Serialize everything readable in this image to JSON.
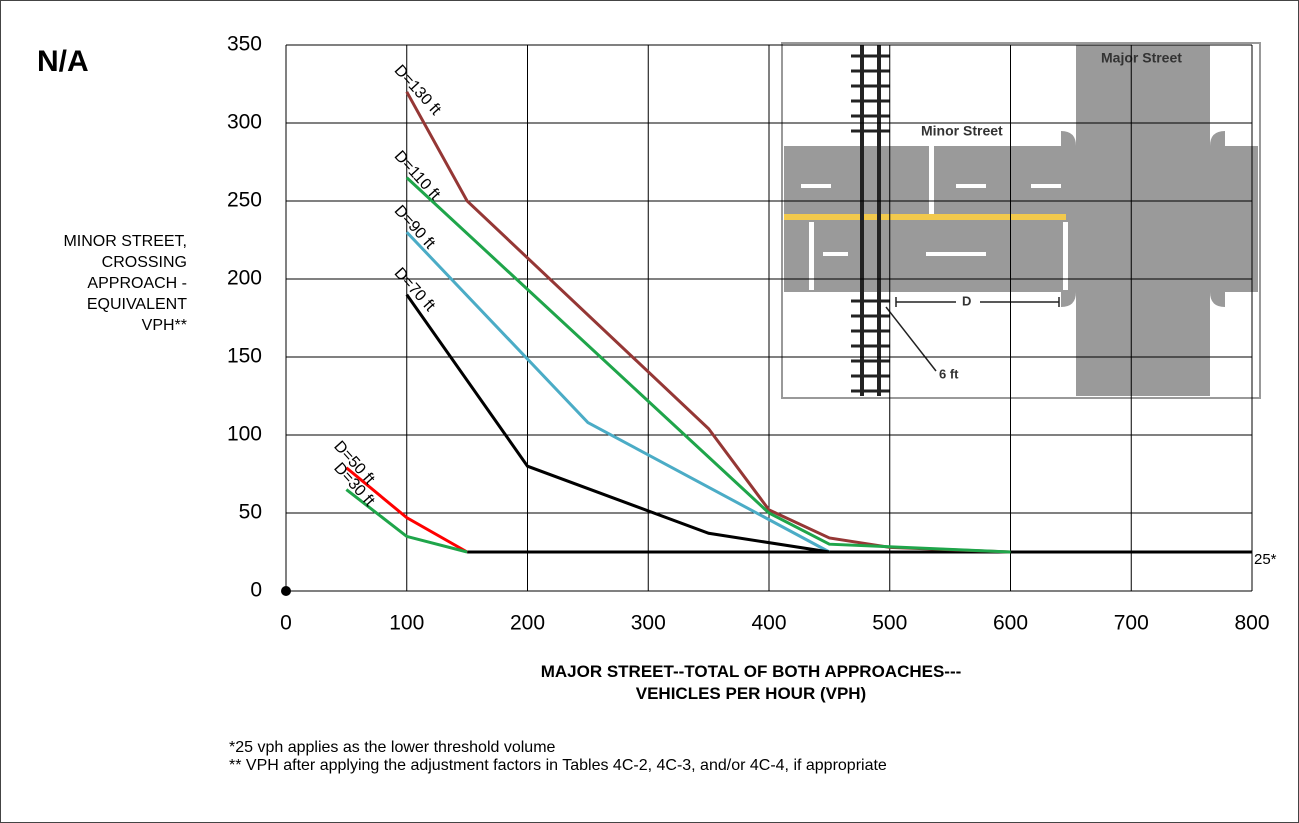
{
  "chart_data": {
    "type": "line",
    "corner_label": "N/A",
    "ylabel": "MINOR STREET,\nCROSSING\nAPPROACH -\nEQUIVALENT\nVPH**",
    "xlabel": "MAJOR STREET--TOTAL OF BOTH APPROACHES---\nVEHICLES PER HOUR (VPH)",
    "notes": [
      "*25 vph applies as the lower threshold volume",
      "** VPH after applying the adjustment factors in Tables 4C-2, 4C-3, and/or 4C-4, if appropriate"
    ],
    "inset_labels": [
      "Major Street",
      "Minor Street",
      "D",
      "6 ft"
    ],
    "xlim": [
      0,
      800
    ],
    "xticks": [
      0,
      100,
      200,
      300,
      400,
      500,
      600,
      700,
      800
    ],
    "ylim": [
      0,
      350
    ],
    "yticks": [
      0,
      50,
      100,
      150,
      200,
      250,
      300,
      350
    ],
    "grid": true,
    "series": [
      {
        "name": "D=130 ft",
        "color": "#953735",
        "x": [
          100,
          150,
          350,
          400,
          450,
          500,
          600
        ],
        "values": [
          320,
          250,
          104,
          52,
          34,
          28,
          25
        ]
      },
      {
        "name": "D=110 ft",
        "color": "#1fa54a",
        "x": [
          100,
          400,
          450,
          600
        ],
        "values": [
          265,
          50,
          30,
          25
        ]
      },
      {
        "name": "D=90 ft",
        "color": "#4bacc6",
        "x": [
          100,
          250,
          450
        ],
        "values": [
          230,
          108,
          25
        ]
      },
      {
        "name": "D=70 ft",
        "color": "#000000",
        "x": [
          100,
          200,
          350,
          450
        ],
        "values": [
          190,
          80,
          37,
          25
        ]
      },
      {
        "name": "D=50 ft",
        "color": "#ff0000",
        "x": [
          50,
          100,
          150
        ],
        "values": [
          79,
          47,
          25
        ]
      },
      {
        "name": "D=30 ft",
        "color": "#1fa54a",
        "x": [
          50,
          100,
          150
        ],
        "values": [
          65,
          35,
          25
        ]
      }
    ],
    "threshold": {
      "label": "25*",
      "x": [
        150,
        800
      ],
      "values": [
        25,
        25
      ],
      "color": "#000000"
    },
    "origin_point": {
      "x": 0,
      "value": 0
    }
  }
}
